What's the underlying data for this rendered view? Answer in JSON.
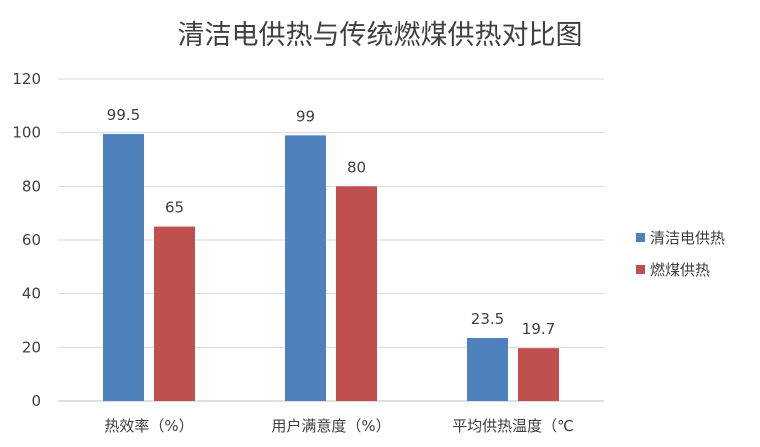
{
  "chart_data": {
    "type": "bar",
    "title": "清洁电供热与传统燃煤供热对比图",
    "xlabel": "",
    "ylabel": "",
    "categories": [
      "热效率（%）",
      "用户满意度（%）",
      "平均供热温度（℃"
    ],
    "series": [
      {
        "name": "清洁电供热",
        "values": [
          99.5,
          99,
          23.5
        ],
        "labels": [
          "99.5",
          "99",
          "23.5"
        ],
        "color": "#4f81bd"
      },
      {
        "name": "燃煤供热",
        "values": [
          65,
          80,
          19.7
        ],
        "labels": [
          "65",
          "80",
          "19.7"
        ],
        "color": "#c0504d"
      }
    ],
    "ylim": [
      0,
      120
    ],
    "yticks": [
      0,
      20,
      40,
      60,
      80,
      100,
      120
    ],
    "grid": true,
    "legend": "right"
  }
}
